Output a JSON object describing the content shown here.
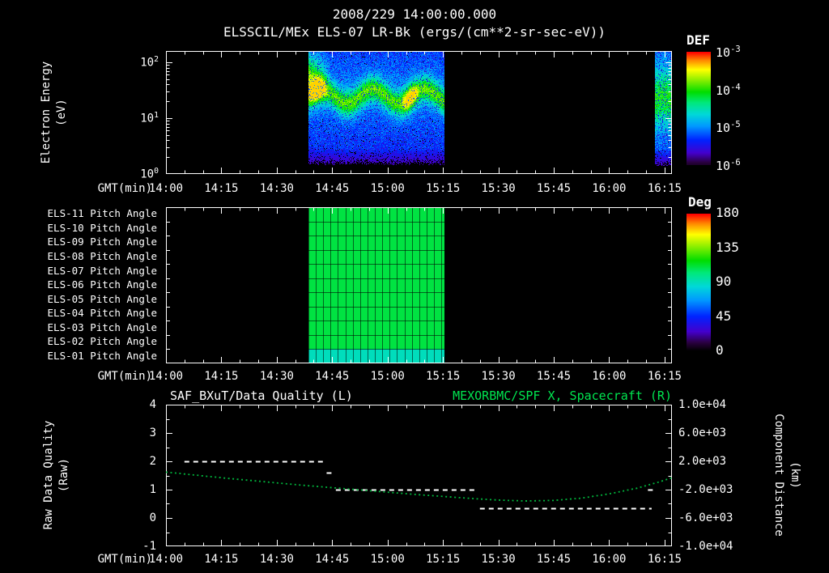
{
  "header": {
    "timestamp": "2008/229 14:00:00.000",
    "title": "ELSSCIL/MEx ELS-07 LR-Bk  (ergs/(cm**2-sr-sec-eV))"
  },
  "colors": {
    "background": "#000000",
    "foreground": "#ffffff",
    "title_green": "#00e550",
    "curve_green": "#00b43c",
    "colormap": [
      [
        0.0,
        "#000000"
      ],
      [
        0.06,
        "#2a0040"
      ],
      [
        0.14,
        "#4400cc"
      ],
      [
        0.25,
        "#0022ff"
      ],
      [
        0.37,
        "#0099ff"
      ],
      [
        0.47,
        "#00d8d8"
      ],
      [
        0.57,
        "#00e87a"
      ],
      [
        0.66,
        "#00dd00"
      ],
      [
        0.76,
        "#88ee00"
      ],
      [
        0.85,
        "#ffff00"
      ],
      [
        0.93,
        "#ff8800"
      ],
      [
        1.0,
        "#ff0000"
      ]
    ]
  },
  "time_axis": {
    "label": "GMT(min)",
    "ticks": [
      "14:00",
      "14:15",
      "14:30",
      "14:45",
      "15:00",
      "15:15",
      "15:30",
      "15:45",
      "16:00",
      "16:15"
    ],
    "tick_minutes": [
      0,
      15,
      30,
      45,
      60,
      75,
      90,
      105,
      120,
      135
    ],
    "minutes_span": 137,
    "minor_tick_minutes": 5,
    "major_tick_minutes": 15
  },
  "spectrogram_panel": {
    "ylabel_line1": "Electron Energy",
    "ylabel_line2": "(eV)",
    "y_ticks": [
      "10^2",
      "10^1",
      "10^0"
    ],
    "y_tick_decades": [
      2,
      1,
      0
    ],
    "colorbar_title": "DEF",
    "colorbar_ticks": [
      "10^-3",
      "10^-4",
      "10^-5",
      "10^-6"
    ]
  },
  "pitch_panel": {
    "row_labels": [
      "ELS-11 Pitch Angle",
      "ELS-10 Pitch Angle",
      "ELS-09 Pitch Angle",
      "ELS-08 Pitch Angle",
      "ELS-07 Pitch Angle",
      "ELS-06 Pitch Angle",
      "ELS-05 Pitch Angle",
      "ELS-04 Pitch Angle",
      "ELS-03 Pitch Angle",
      "ELS-02 Pitch Angle",
      "ELS-01 Pitch Angle"
    ],
    "colorbar_title": "Deg",
    "colorbar_ticks": [
      "180",
      "135",
      "90",
      "45",
      "0"
    ]
  },
  "quality_panel": {
    "title_left": "SAF_BXuT/Data Quality (L)",
    "title_right": "MEXORBMC/SPF X, Spacecraft (R)",
    "ylabel_left_line1": "Raw Data Quality",
    "ylabel_left_line2": "(Raw)",
    "ylabel_right_line1": "Component Distance",
    "ylabel_right_line2": "(km)",
    "y_ticks_left": [
      "4",
      "3",
      "2",
      "1",
      "0",
      "-1"
    ],
    "y_tick_left_values": [
      4,
      3,
      2,
      1,
      0,
      -1
    ],
    "y_ticks_right": [
      "1.0e+04",
      "6.0e+03",
      "2.0e+03",
      "-2.0e+03",
      "-6.0e+03",
      "-1.0e+04"
    ]
  },
  "chart_data": [
    {
      "type": "heatmap",
      "name": "electron-energy-spectrogram",
      "title": "ELSSCIL/MEx ELS-07 LR-Bk (ergs/(cm**2-sr-sec-eV))",
      "xlabel": "GMT(min)",
      "ylabel": "Electron Energy (eV)",
      "x_range_gmt": [
        "14:00",
        "16:17"
      ],
      "y_scale": "log",
      "y_range_ev": [
        1,
        158
      ],
      "y_decades": 2.2,
      "colorbar": {
        "label": "DEF",
        "units": "ergs/(cm**2-sr-sec-eV)",
        "scale": "log",
        "range_ticks": [
          "10^-3",
          "10^-4",
          "10^-5",
          "10^-6"
        ]
      },
      "bursts": [
        {
          "t_start_min": 38.5,
          "t_end_min": 75.3,
          "band_center_log10ev": 1.38,
          "band_width_dec": 0.22,
          "band_peak": 0.5,
          "wave_amp_dec": 0.13,
          "wave_period_min": 14,
          "background": 0.2,
          "start_flare_min": 6,
          "yellow_peaks_min": [
            41,
            66
          ]
        },
        {
          "t_start_min": 132.5,
          "t_end_min": 137,
          "band_center_log10ev": 1.3,
          "band_width_dec": 0.5,
          "band_peak": 0.35,
          "wave_amp_dec": 0.05,
          "wave_period_min": 8,
          "background": 0.25,
          "start_flare_min": 0,
          "yellow_peaks_min": []
        }
      ]
    },
    {
      "type": "heatmap",
      "name": "pitch-angle-panel",
      "rows": [
        "ELS-11 Pitch Angle",
        "ELS-10 Pitch Angle",
        "ELS-09 Pitch Angle",
        "ELS-08 Pitch Angle",
        "ELS-07 Pitch Angle",
        "ELS-06 Pitch Angle",
        "ELS-05 Pitch Angle",
        "ELS-04 Pitch Angle",
        "ELS-03 Pitch Angle",
        "ELS-02 Pitch Angle",
        "ELS-01 Pitch Angle"
      ],
      "row_values_deg": [
        110,
        110,
        110,
        110,
        110,
        110,
        110,
        110,
        110,
        110,
        90
      ],
      "interval": {
        "t_start_min": 38.5,
        "t_end_min": 75.3
      },
      "grid_step_min": 2,
      "colorbar": {
        "label": "Deg",
        "range": [
          0,
          180
        ],
        "ticks": [
          180,
          135,
          90,
          45,
          0
        ]
      }
    },
    {
      "type": "line",
      "name": "data-quality-and-spacecraft-x",
      "xlabel": "GMT(min)",
      "ylim_left": [
        -1,
        4
      ],
      "ylim_right": [
        -10000,
        10000
      ],
      "series": [
        {
          "name": "SAF_BXuT/Data Quality (L)",
          "axis": "left",
          "color": "#ffffff",
          "style": "dashed",
          "segments": [
            {
              "t_start_min": 5,
              "t_end_min": 43,
              "value": 2
            },
            {
              "t_start_min": 43.5,
              "t_end_min": 45,
              "value": 1.6
            },
            {
              "t_start_min": 46,
              "t_end_min": 83.5,
              "value": 1
            },
            {
              "t_start_min": 85,
              "t_end_min": 131.5,
              "value": 0.35
            },
            {
              "t_start_min": 130.5,
              "t_end_min": 132.5,
              "value": 1
            }
          ]
        },
        {
          "name": "MEXORBMC/SPF X, Spacecraft (R)",
          "axis": "right",
          "color": "#00b43c",
          "style": "dotted",
          "x_min": [
            0,
            7.5,
            15,
            22.5,
            30,
            37.5,
            45,
            52.5,
            60,
            67.5,
            75,
            82.5,
            90,
            97.5,
            105,
            112.5,
            120,
            127.5,
            133,
            137
          ],
          "y_km": [
            480,
            80,
            -320,
            -680,
            -1040,
            -1400,
            -1720,
            -2040,
            -2360,
            -2680,
            -2960,
            -3240,
            -3480,
            -3600,
            -3520,
            -3200,
            -2600,
            -1800,
            -1000,
            -320
          ]
        }
      ]
    }
  ]
}
